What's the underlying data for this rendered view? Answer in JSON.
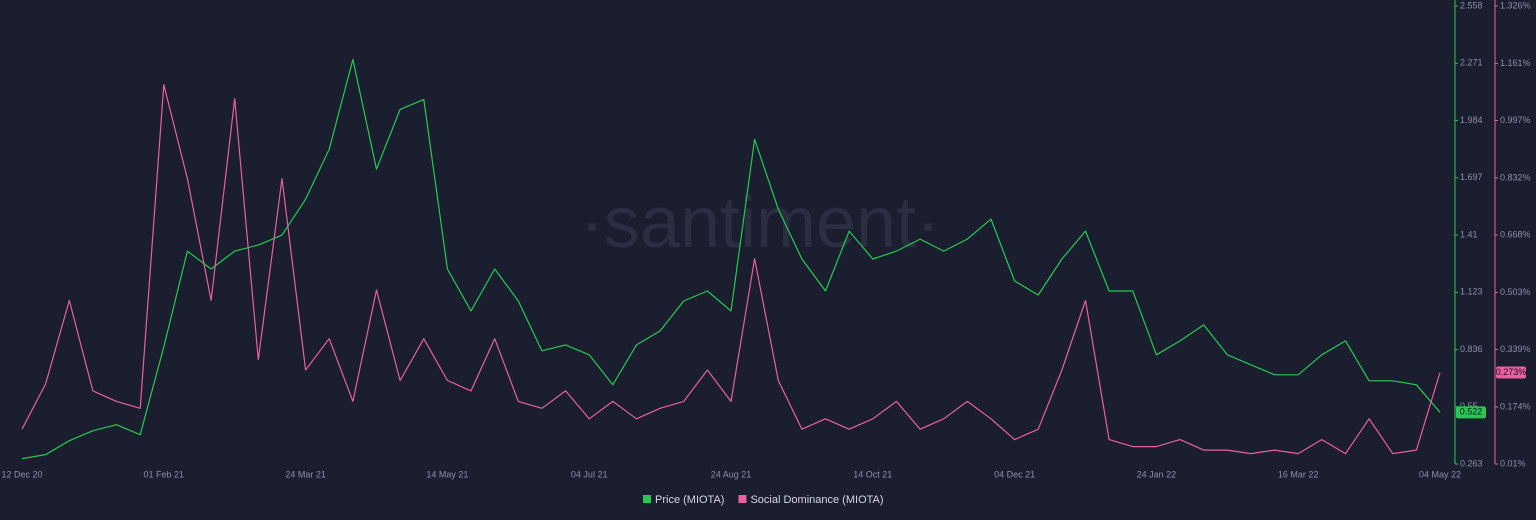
{
  "chart_data": {
    "type": "line",
    "watermark": "·santiment·",
    "categories": [
      "12 Dec 20",
      null,
      null,
      null,
      null,
      null,
      "01 Feb 21",
      null,
      null,
      null,
      null,
      null,
      "24 Mar 21",
      null,
      null,
      null,
      null,
      null,
      "14 May 21",
      null,
      null,
      null,
      null,
      null,
      "04 Jul 21",
      null,
      null,
      null,
      null,
      null,
      "24 Aug 21",
      null,
      null,
      null,
      null,
      null,
      "14 Oct 21",
      null,
      null,
      null,
      null,
      null,
      "04 Dec 21",
      null,
      null,
      null,
      null,
      null,
      "24 Jan 22",
      null,
      null,
      null,
      null,
      null,
      "16 Mar 22",
      null,
      null,
      null,
      null,
      null,
      "04 May 22"
    ],
    "series": [
      {
        "name": "Price (MIOTA)",
        "color": "#26c953",
        "values": [
          0.29,
          0.31,
          0.38,
          0.43,
          0.46,
          0.41,
          0.85,
          1.33,
          1.24,
          1.33,
          1.36,
          1.41,
          1.59,
          1.84,
          2.29,
          1.74,
          2.04,
          2.09,
          1.24,
          1.03,
          1.24,
          1.08,
          0.83,
          0.86,
          0.81,
          0.66,
          0.86,
          0.93,
          1.08,
          1.13,
          1.03,
          1.89,
          1.54,
          1.29,
          1.13,
          1.43,
          1.29,
          1.33,
          1.39,
          1.33,
          1.39,
          1.49,
          1.18,
          1.11,
          1.29,
          1.43,
          1.13,
          1.13,
          0.81,
          0.88,
          0.96,
          0.81,
          0.76,
          0.71,
          0.71,
          0.81,
          0.88,
          0.68,
          0.68,
          0.66,
          0.522
        ]
      },
      {
        "name": "Social Dominance (MIOTA)",
        "color": "#e8609f",
        "axis": "y2",
        "values": [
          0.11,
          0.24,
          0.48,
          0.22,
          0.19,
          0.17,
          1.1,
          0.83,
          0.48,
          1.06,
          0.31,
          0.83,
          0.28,
          0.37,
          0.19,
          0.51,
          0.25,
          0.37,
          0.25,
          0.22,
          0.37,
          0.19,
          0.17,
          0.22,
          0.14,
          0.19,
          0.14,
          0.17,
          0.19,
          0.28,
          0.19,
          0.6,
          0.25,
          0.11,
          0.14,
          0.11,
          0.14,
          0.19,
          0.11,
          0.14,
          0.19,
          0.14,
          0.08,
          0.11,
          0.28,
          0.48,
          0.08,
          0.06,
          0.06,
          0.08,
          0.05,
          0.05,
          0.04,
          0.05,
          0.04,
          0.08,
          0.04,
          0.14,
          0.04,
          0.05,
          0.273
        ],
        "value_labels": [
          null,
          null,
          null,
          null,
          null,
          null,
          null,
          null,
          null,
          null,
          null,
          null,
          null,
          null,
          null,
          null,
          null,
          null,
          null,
          null,
          null,
          null,
          null,
          null,
          null,
          null,
          null,
          null,
          null,
          null,
          null,
          null,
          null,
          null,
          null,
          null,
          null,
          null,
          null,
          null,
          null,
          null,
          null,
          null,
          null,
          null,
          null,
          null,
          null,
          null,
          null,
          null,
          null,
          null,
          null,
          null,
          null,
          null,
          null,
          null,
          "0.273%"
        ]
      }
    ],
    "ylim": [
      0.263,
      2.558
    ],
    "yticks": [
      0.263,
      0.55,
      0.836,
      1.123,
      1.41,
      1.697,
      1.984,
      2.271,
      2.558
    ],
    "y2lim": [
      0.01,
      1.326
    ],
    "y2ticks": [
      {
        "value": 0.01,
        "label": "0.01%"
      },
      {
        "value": 0.174,
        "label": "0.174%"
      },
      {
        "value": 0.339,
        "label": "0.339%"
      },
      {
        "value": 0.503,
        "label": "0.503%"
      },
      {
        "value": 0.668,
        "label": "0.668%"
      },
      {
        "value": 0.832,
        "label": "0.832%"
      },
      {
        "value": 0.997,
        "label": "0.997%"
      },
      {
        "value": 1.161,
        "label": "1.161%"
      },
      {
        "value": 1.326,
        "label": "1.326%"
      }
    ],
    "legend": "bottom"
  }
}
